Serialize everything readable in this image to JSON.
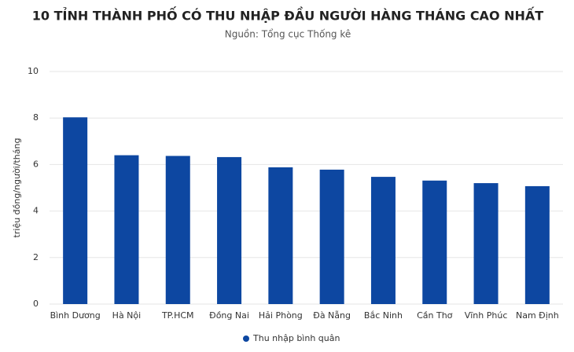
{
  "chart_data": {
    "type": "bar",
    "title": "10 TỈNH THÀNH PHỐ CÓ THU NHẬP ĐẦU NGƯỜI HÀNG THÁNG CAO NHẤT",
    "subtitle": "Nguồn: Tổng cục Thống kê",
    "y_label": "triệu đồng/người/tháng",
    "categories": [
      "Bình Dương",
      "Hà Nội",
      "TP.HCM",
      "Đồng Nai",
      "Hải Phòng",
      "Đà Nẵng",
      "Bắc Ninh",
      "Cần Thơ",
      "Vĩnh Phúc",
      "Nam Định"
    ],
    "series": [
      {
        "name": "Thu nhập bình quân",
        "color": "#0d47a1",
        "values": [
          8.03,
          6.4,
          6.37,
          6.32,
          5.88,
          5.78,
          5.47,
          5.31,
          5.2,
          5.07
        ]
      }
    ],
    "ylim": [
      0,
      10
    ],
    "yticks": [
      0,
      2,
      4,
      6,
      8,
      10
    ],
    "grid": true
  }
}
